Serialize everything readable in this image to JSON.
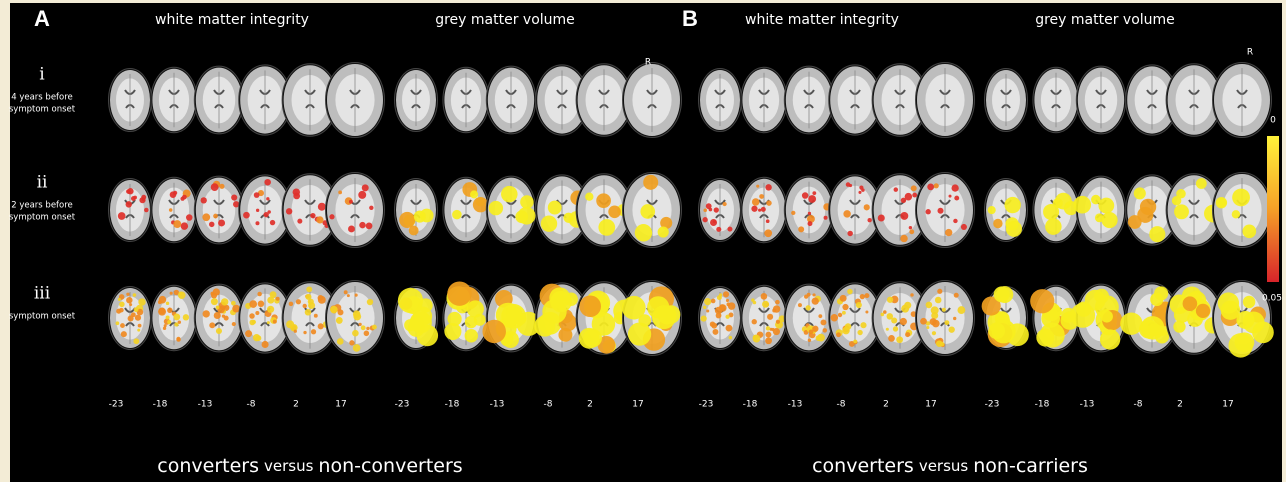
{
  "panels": [
    {
      "letter": "A",
      "columns": [
        "white matter integrity",
        "grey matter volume"
      ],
      "side_marker": "R",
      "slices": [
        [
          "-23",
          "-18",
          "-13",
          "-8",
          "2",
          "17"
        ],
        [
          "-23",
          "-18",
          "-13",
          "-8",
          "2",
          "17"
        ]
      ],
      "caption": [
        "converters",
        "versus",
        "non-converters"
      ]
    },
    {
      "letter": "B",
      "columns": [
        "white matter integrity",
        "grey matter volume"
      ],
      "side_marker": "R",
      "slices": [
        [
          "-23",
          "-18",
          "-13",
          "-8",
          "2",
          "17"
        ],
        [
          "-23",
          "-18",
          "-13",
          "-8",
          "2",
          "17"
        ]
      ],
      "caption": [
        "converters",
        "versus",
        "non-carriers"
      ]
    }
  ],
  "rows": [
    {
      "numeral": "i",
      "label": [
        "4 years before",
        "symptom onset"
      ]
    },
    {
      "numeral": "ii",
      "label": [
        "2 years before",
        "symptom onset"
      ]
    },
    {
      "numeral": "iii",
      "label": [
        "symptom onset"
      ]
    }
  ],
  "colorbar": {
    "top": "0",
    "bottom": "0.05"
  }
}
